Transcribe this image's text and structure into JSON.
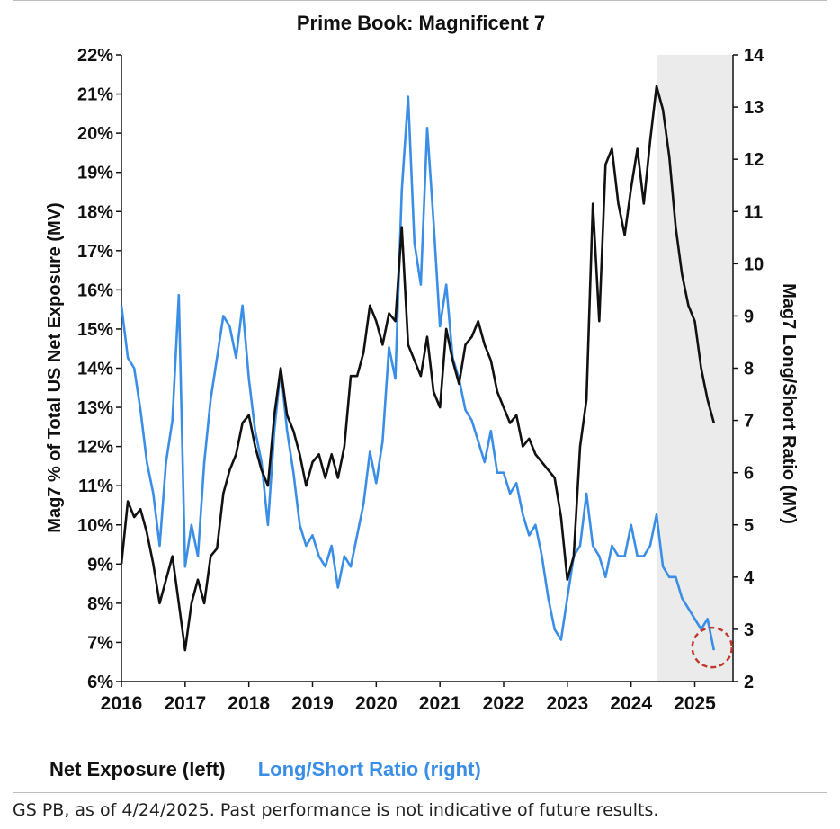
{
  "chart_data": {
    "type": "line",
    "title": "Prime Book: Magnificent 7",
    "ylabel_left": "Mag7 % of Total US Net Exposure (MV)",
    "ylabel_right": "Mag7 Long/Short Ratio (MV)",
    "xlim": [
      2016,
      2025.6
    ],
    "ylim_left": [
      6,
      22
    ],
    "ylim_right": [
      2,
      14
    ],
    "x_ticks": [
      "2016",
      "2017",
      "2018",
      "2019",
      "2020",
      "2021",
      "2022",
      "2023",
      "2024",
      "2025"
    ],
    "y_ticks_left": [
      "6%",
      "7%",
      "8%",
      "9%",
      "10%",
      "11%",
      "12%",
      "13%",
      "14%",
      "15%",
      "16%",
      "17%",
      "18%",
      "19%",
      "20%",
      "21%",
      "22%"
    ],
    "y_ticks_right": [
      "2",
      "3",
      "4",
      "5",
      "6",
      "7",
      "8",
      "9",
      "10",
      "11",
      "12",
      "13",
      "14"
    ],
    "shaded_region": [
      2024.4,
      2025.6
    ],
    "grid": false,
    "legend_position": "bottom-left",
    "series": [
      {
        "name": "Net Exposure (left)",
        "axis": "left",
        "color": "#111111",
        "x": [
          2016.0,
          2016.1,
          2016.2,
          2016.3,
          2016.4,
          2016.5,
          2016.6,
          2016.7,
          2016.8,
          2016.9,
          2017.0,
          2017.1,
          2017.2,
          2017.3,
          2017.4,
          2017.5,
          2017.6,
          2017.7,
          2017.8,
          2017.9,
          2018.0,
          2018.1,
          2018.2,
          2018.3,
          2018.4,
          2018.5,
          2018.6,
          2018.7,
          2018.8,
          2018.9,
          2019.0,
          2019.1,
          2019.2,
          2019.3,
          2019.4,
          2019.5,
          2019.6,
          2019.7,
          2019.8,
          2019.9,
          2020.0,
          2020.1,
          2020.2,
          2020.3,
          2020.4,
          2020.5,
          2020.6,
          2020.7,
          2020.8,
          2020.9,
          2021.0,
          2021.1,
          2021.2,
          2021.3,
          2021.4,
          2021.5,
          2021.6,
          2021.7,
          2021.8,
          2021.9,
          2022.0,
          2022.1,
          2022.2,
          2022.3,
          2022.4,
          2022.5,
          2022.6,
          2022.7,
          2022.8,
          2022.9,
          2023.0,
          2023.1,
          2023.2,
          2023.3,
          2023.4,
          2023.5,
          2023.6,
          2023.7,
          2023.8,
          2023.9,
          2024.0,
          2024.1,
          2024.2,
          2024.3,
          2024.4,
          2024.5,
          2024.6,
          2024.7,
          2024.8,
          2024.9,
          2025.0,
          2025.1,
          2025.2,
          2025.3
        ],
        "values": [
          9.0,
          10.6,
          10.2,
          10.4,
          9.8,
          9.0,
          8.0,
          8.6,
          9.2,
          8.0,
          6.8,
          8.0,
          8.6,
          8.0,
          9.2,
          9.4,
          10.8,
          11.4,
          11.8,
          12.6,
          12.8,
          12.0,
          11.4,
          11.0,
          12.8,
          14.0,
          12.8,
          12.4,
          11.8,
          11.0,
          11.6,
          11.8,
          11.2,
          11.8,
          11.2,
          12.0,
          13.8,
          13.8,
          14.4,
          15.6,
          15.2,
          14.6,
          15.4,
          15.2,
          17.6,
          14.6,
          14.2,
          13.8,
          14.8,
          13.4,
          13.0,
          15.0,
          14.2,
          13.6,
          14.6,
          14.8,
          15.2,
          14.6,
          14.2,
          13.4,
          13.0,
          12.6,
          12.8,
          12.0,
          12.2,
          11.8,
          11.6,
          11.4,
          11.2,
          10.2,
          8.6,
          9.2,
          12.0,
          13.2,
          18.2,
          15.2,
          19.2,
          19.6,
          18.2,
          17.4,
          18.6,
          19.6,
          18.2,
          19.8,
          21.2,
          20.6,
          19.4,
          17.6,
          16.4,
          15.6,
          15.2,
          14.0,
          13.2,
          12.6
        ]
      },
      {
        "name": "Long/Short Ratio (right)",
        "axis": "right",
        "color": "#3a8ee6",
        "x": [
          2016.0,
          2016.1,
          2016.2,
          2016.3,
          2016.4,
          2016.5,
          2016.6,
          2016.7,
          2016.8,
          2016.9,
          2017.0,
          2017.1,
          2017.2,
          2017.3,
          2017.4,
          2017.5,
          2017.6,
          2017.7,
          2017.8,
          2017.9,
          2018.0,
          2018.1,
          2018.2,
          2018.3,
          2018.4,
          2018.5,
          2018.6,
          2018.7,
          2018.8,
          2018.9,
          2019.0,
          2019.1,
          2019.2,
          2019.3,
          2019.4,
          2019.5,
          2019.6,
          2019.7,
          2019.8,
          2019.9,
          2020.0,
          2020.1,
          2020.2,
          2020.3,
          2020.4,
          2020.5,
          2020.6,
          2020.7,
          2020.8,
          2020.9,
          2021.0,
          2021.1,
          2021.2,
          2021.3,
          2021.4,
          2021.5,
          2021.6,
          2021.7,
          2021.8,
          2021.9,
          2022.0,
          2022.1,
          2022.2,
          2022.3,
          2022.4,
          2022.5,
          2022.6,
          2022.7,
          2022.8,
          2022.9,
          2023.0,
          2023.1,
          2023.2,
          2023.3,
          2023.4,
          2023.5,
          2023.6,
          2023.7,
          2023.8,
          2023.9,
          2024.0,
          2024.1,
          2024.2,
          2024.3,
          2024.4,
          2024.5,
          2024.6,
          2024.7,
          2024.8,
          2024.9,
          2025.0,
          2025.1,
          2025.2,
          2025.3
        ],
        "values": [
          9.2,
          8.2,
          8.0,
          7.2,
          6.2,
          5.6,
          4.6,
          6.2,
          7.0,
          9.4,
          4.2,
          5.0,
          4.4,
          6.2,
          7.4,
          8.2,
          9.0,
          8.8,
          8.2,
          9.2,
          7.8,
          6.8,
          6.2,
          5.0,
          6.8,
          8.0,
          6.8,
          6.0,
          5.0,
          4.6,
          4.8,
          4.4,
          4.2,
          4.6,
          3.8,
          4.4,
          4.2,
          4.8,
          5.4,
          6.4,
          5.8,
          6.6,
          8.4,
          7.8,
          11.4,
          13.2,
          10.4,
          9.6,
          12.6,
          10.8,
          8.8,
          9.6,
          8.2,
          7.8,
          7.2,
          7.0,
          6.6,
          6.2,
          6.8,
          6.0,
          6.0,
          5.6,
          5.8,
          5.2,
          4.8,
          5.0,
          4.4,
          3.6,
          3.0,
          2.8,
          3.6,
          4.4,
          4.6,
          5.6,
          4.6,
          4.4,
          4.0,
          4.6,
          4.4,
          4.4,
          5.0,
          4.4,
          4.4,
          4.6,
          5.2,
          4.2,
          4.0,
          4.0,
          3.6,
          3.4,
          3.2,
          3.0,
          3.2,
          2.6
        ]
      }
    ],
    "annotation": "dashed red circle on latest Long/Short Ratio value (~2.6)"
  },
  "legend": {
    "net_label": "Net Exposure (left)",
    "ls_label": "Long/Short Ratio (right)"
  },
  "footnote": "GS PB, as of 4/24/2025. Past performance is not indicative of future results.",
  "colors": {
    "net": "#111111",
    "ls": "#3a8ee6",
    "shade": "#ebebeb",
    "annotation": "#c0392b"
  }
}
